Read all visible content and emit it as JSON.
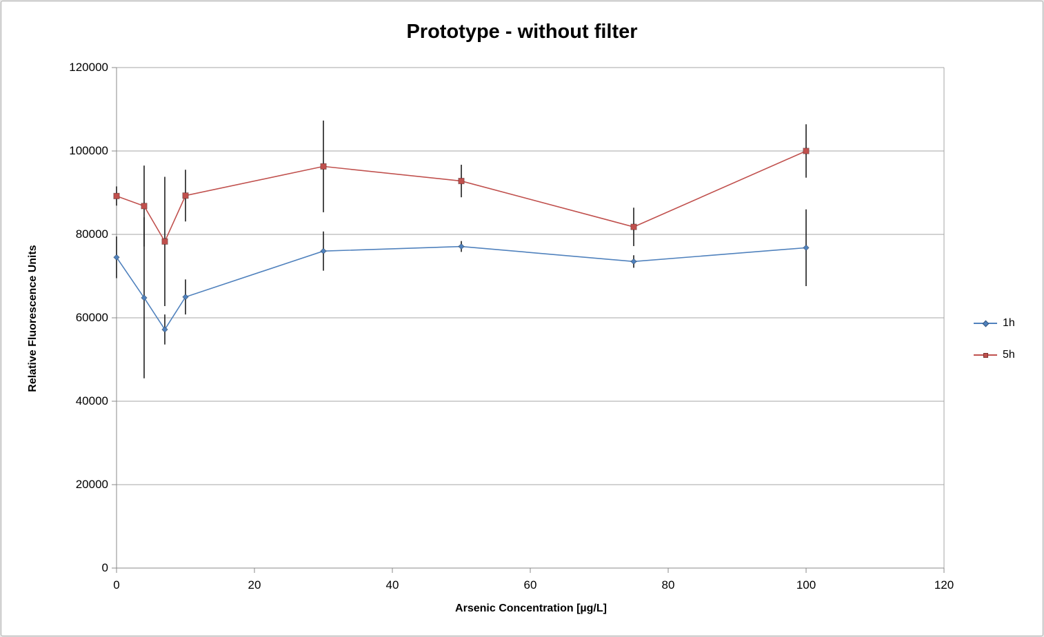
{
  "window": {
    "background": "#ffffff",
    "border_color": "#ababab"
  },
  "chart_data": {
    "type": "line",
    "title": "Prototype - without filter",
    "xlabel": "Arsenic Concentration [µg/L]",
    "ylabel": "Relative Fluorescence Units",
    "xlim": [
      0,
      120
    ],
    "ylim": [
      0,
      120000
    ],
    "x_ticks": [
      0,
      20,
      40,
      60,
      80,
      100,
      120
    ],
    "y_ticks": [
      0,
      20000,
      40000,
      60000,
      80000,
      100000,
      120000
    ],
    "grid": "horizontal",
    "gridline_color": "#a6a6a6",
    "axis_color": "#898989",
    "error_bar_color": "#1c1c1c",
    "legend_position": "right",
    "series": [
      {
        "name": "1h",
        "color": "#4f81bd",
        "marker": "diamond",
        "points": [
          {
            "x": 0,
            "y": 74500,
            "err": 5000
          },
          {
            "x": 4,
            "y": 64800,
            "err": 19300
          },
          {
            "x": 7,
            "y": 57200,
            "err": 3600
          },
          {
            "x": 10,
            "y": 65000,
            "err": 4200
          },
          {
            "x": 30,
            "y": 76000,
            "err": 4700
          },
          {
            "x": 50,
            "y": 77100,
            "err": 1300
          },
          {
            "x": 75,
            "y": 73500,
            "err": 1500
          },
          {
            "x": 100,
            "y": 76800,
            "err": 9200
          }
        ]
      },
      {
        "name": "5h",
        "color": "#c0504d",
        "marker": "square",
        "points": [
          {
            "x": 0,
            "y": 89200,
            "err": 2300
          },
          {
            "x": 4,
            "y": 86800,
            "err": 9700
          },
          {
            "x": 7,
            "y": 78300,
            "err": 15500
          },
          {
            "x": 10,
            "y": 89300,
            "err": 6200
          },
          {
            "x": 30,
            "y": 96300,
            "err": 11000
          },
          {
            "x": 50,
            "y": 92800,
            "err": 3900
          },
          {
            "x": 75,
            "y": 81800,
            "err": 4600
          },
          {
            "x": 100,
            "y": 100000,
            "err": 6400
          }
        ]
      }
    ]
  }
}
